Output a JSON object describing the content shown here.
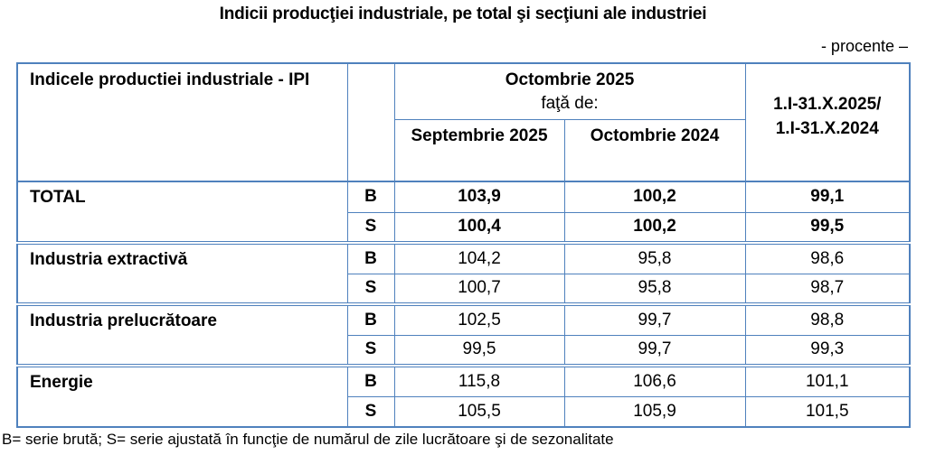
{
  "page": {
    "title": "Indicii producţiei industriale, pe total şi secţiuni ale industriei",
    "unit_note": "- procente –",
    "footnote": "B= serie brută; S= serie ajustată în funcţie de numărul de zile lucrătoare şi de sezonalitate"
  },
  "table": {
    "header": {
      "indicator": "Indicele productiei industriale - IPI",
      "series_col": "",
      "group_title": "Octombrie 2025",
      "group_subtitle": "faţă de:",
      "col_prev_month": "Septembrie 2025",
      "col_prev_year": "Octombrie 2024",
      "period_line1": "1.I-31.X.2025/",
      "period_line2": "1.I-31.X.2024"
    },
    "groups": [
      {
        "label": "TOTAL",
        "b": {
          "code": "B",
          "vs_sep2025": "103,9",
          "vs_oct2024": "100,2",
          "cumulative": "99,1"
        },
        "s": {
          "code": "S",
          "vs_sep2025": "100,4",
          "vs_oct2024": "100,2",
          "cumulative": "99,5"
        }
      },
      {
        "label": "Industria extractivă",
        "b": {
          "code": "B",
          "vs_sep2025": "104,2",
          "vs_oct2024": "95,8",
          "cumulative": "98,6"
        },
        "s": {
          "code": "S",
          "vs_sep2025": "100,7",
          "vs_oct2024": "95,8",
          "cumulative": "98,7"
        }
      },
      {
        "label": "Industria prelucrătoare",
        "b": {
          "code": "B",
          "vs_sep2025": "102,5",
          "vs_oct2024": "99,7",
          "cumulative": "98,8"
        },
        "s": {
          "code": "S",
          "vs_sep2025": "99,5",
          "vs_oct2024": "99,7",
          "cumulative": "99,3"
        }
      },
      {
        "label": "Energie",
        "b": {
          "code": "B",
          "vs_sep2025": "115,8",
          "vs_oct2024": "106,6",
          "cumulative": "101,1"
        },
        "s": {
          "code": "S",
          "vs_sep2025": "105,5",
          "vs_oct2024": "105,9",
          "cumulative": "101,5"
        }
      }
    ]
  },
  "colors": {
    "border": "#4f81bd",
    "text": "#000000"
  }
}
